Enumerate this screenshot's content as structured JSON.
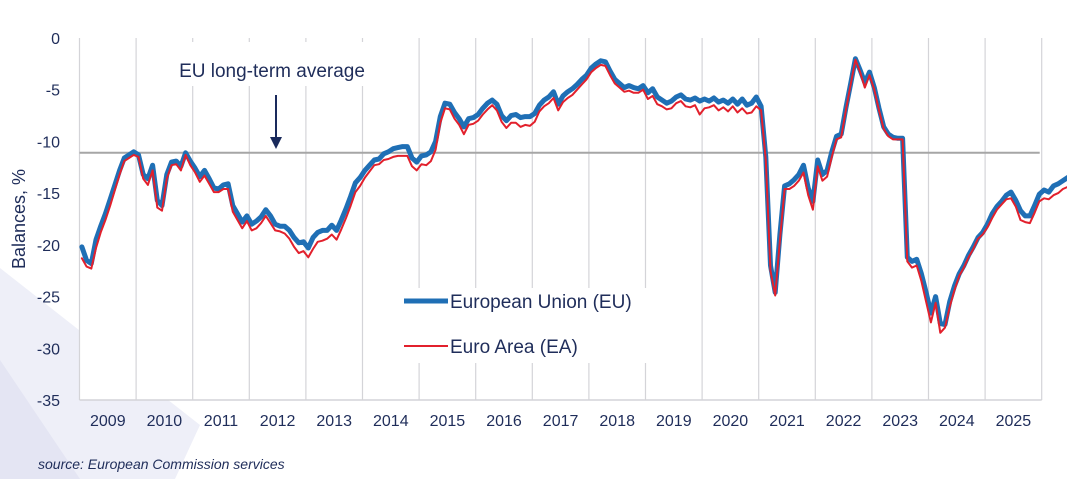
{
  "chart_data": {
    "type": "line",
    "title": "",
    "xlabel": "",
    "ylabel": "Balances, %",
    "ylim": [
      -35,
      0
    ],
    "yticks": [
      0,
      -5,
      -10,
      -15,
      -20,
      -25,
      -30,
      -35
    ],
    "ytick_labels": [
      "0",
      "-5",
      "-10",
      "-15",
      "-20",
      "-25",
      "-30",
      "-35"
    ],
    "x_categories": [
      "2009",
      "2010",
      "2011",
      "2012",
      "2013",
      "2014",
      "2015",
      "2016",
      "2017",
      "2018",
      "2019",
      "2020",
      "2021",
      "2022",
      "2023",
      "2024",
      "2025"
    ],
    "x_start": "2009-01",
    "frequency": "monthly",
    "grid": "vertical year separators",
    "legend_placement": "lower-center",
    "reference_line": {
      "label": "EU long-term average",
      "value": -11.1
    },
    "annotation": {
      "text": "EU long-term average",
      "arrow_points_to": "EU long-term average line"
    },
    "series": [
      {
        "name": "European Union (EU)",
        "color": "#1f6fb5",
        "values": [
          -20.2,
          -21.5,
          -21.8,
          -19.5,
          -18.2,
          -17.0,
          -15.6,
          -14.2,
          -12.8,
          -11.6,
          -11.3,
          -11.0,
          -11.3,
          -13.2,
          -13.6,
          -12.3,
          -15.7,
          -16.2,
          -13.2,
          -12.0,
          -11.9,
          -12.4,
          -11.1,
          -11.9,
          -12.6,
          -13.4,
          -12.8,
          -13.6,
          -14.5,
          -14.6,
          -14.2,
          -14.1,
          -16.2,
          -17.0,
          -17.8,
          -17.2,
          -18.0,
          -17.7,
          -17.3,
          -16.6,
          -17.2,
          -18.0,
          -18.2,
          -18.2,
          -18.6,
          -19.3,
          -19.8,
          -19.7,
          -20.3,
          -19.3,
          -18.8,
          -18.6,
          -18.6,
          -18.1,
          -18.6,
          -17.6,
          -16.5,
          -15.3,
          -14.0,
          -13.5,
          -12.8,
          -12.3,
          -11.8,
          -11.7,
          -11.2,
          -11.0,
          -10.7,
          -10.6,
          -10.5,
          -10.5,
          -11.6,
          -12.0,
          -11.4,
          -11.3,
          -11.0,
          -10.0,
          -7.6,
          -6.3,
          -6.4,
          -7.2,
          -7.8,
          -8.6,
          -7.8,
          -7.7,
          -7.4,
          -6.8,
          -6.3,
          -6.0,
          -6.4,
          -7.5,
          -8.0,
          -7.5,
          -7.4,
          -7.7,
          -7.6,
          -7.6,
          -7.3,
          -6.5,
          -6.0,
          -5.7,
          -5.2,
          -6.4,
          -5.6,
          -5.2,
          -4.9,
          -4.5,
          -4.0,
          -3.6,
          -2.9,
          -2.5,
          -2.2,
          -2.3,
          -3.2,
          -4.0,
          -4.4,
          -4.8,
          -4.6,
          -4.8,
          -4.9,
          -4.6,
          -5.3,
          -4.9,
          -5.7,
          -6.0,
          -6.3,
          -6.1,
          -5.7,
          -5.5,
          -5.9,
          -6.0,
          -5.8,
          -6.1,
          -5.9,
          -6.1,
          -5.8,
          -6.2,
          -6.0,
          -6.3,
          -5.9,
          -6.4,
          -5.9,
          -6.5,
          -6.3,
          -5.7,
          -6.6,
          -11.5,
          -22.0,
          -24.6,
          -19.0,
          -14.3,
          -14.1,
          -13.7,
          -13.2,
          -12.3,
          -14.5,
          -15.8,
          -11.8,
          -13.2,
          -12.8,
          -11.0,
          -9.5,
          -9.3,
          -6.7,
          -4.4,
          -2.0,
          -3.1,
          -4.3,
          -3.3,
          -4.8,
          -6.8,
          -8.6,
          -9.3,
          -9.6,
          -9.7,
          -9.7,
          -21.2,
          -21.6,
          -21.4,
          -22.8,
          -24.6,
          -26.6,
          -25.0,
          -27.6,
          -27.7,
          -25.5,
          -24.0,
          -22.8,
          -22.0,
          -21.0,
          -20.2,
          -19.3,
          -18.8,
          -18.0,
          -17.0,
          -16.3,
          -15.8,
          -15.2,
          -14.9,
          -15.7,
          -16.7,
          -17.2,
          -17.2,
          -16.2,
          -15.1,
          -14.7,
          -14.9,
          -14.3,
          -14.1,
          -13.8,
          -13.5,
          -13.2,
          -13.2,
          -12.8,
          -12.7,
          -12.2,
          -12.0,
          -11.6,
          -11.6,
          -11.2,
          -11.0,
          -11.8,
          -12.4,
          -13.0,
          -13.1,
          -13.2,
          -13.0,
          -13.4,
          -14.8,
          -14.6,
          -14.5,
          -14.7,
          -14.5,
          -14.6,
          -14.2,
          -14.5,
          -14.0,
          -13.6,
          -13.6
        ]
      },
      {
        "name": "Euro Area (EA)",
        "color": "#e2202c",
        "values": [
          -21.3,
          -22.1,
          -22.3,
          -20.3,
          -18.8,
          -17.6,
          -16.2,
          -14.7,
          -13.2,
          -11.9,
          -11.6,
          -11.3,
          -11.5,
          -13.6,
          -14.2,
          -12.8,
          -16.4,
          -16.7,
          -13.6,
          -12.3,
          -12.2,
          -12.8,
          -11.3,
          -12.3,
          -13.0,
          -13.9,
          -13.3,
          -14.1,
          -14.9,
          -14.9,
          -14.6,
          -14.6,
          -16.8,
          -17.6,
          -18.4,
          -17.7,
          -18.6,
          -18.4,
          -17.9,
          -17.2,
          -17.9,
          -18.6,
          -18.7,
          -18.9,
          -19.4,
          -20.2,
          -20.8,
          -20.6,
          -21.2,
          -20.4,
          -19.7,
          -19.6,
          -19.4,
          -19.0,
          -19.5,
          -18.5,
          -17.4,
          -16.2,
          -14.9,
          -14.3,
          -13.5,
          -12.9,
          -12.3,
          -12.2,
          -11.8,
          -11.7,
          -11.5,
          -11.4,
          -11.4,
          -11.4,
          -12.4,
          -12.8,
          -12.2,
          -12.3,
          -11.9,
          -10.8,
          -8.2,
          -6.8,
          -6.9,
          -7.8,
          -8.4,
          -9.3,
          -8.4,
          -8.3,
          -8.0,
          -7.4,
          -6.9,
          -6.5,
          -7.0,
          -8.1,
          -8.7,
          -8.2,
          -8.2,
          -8.6,
          -8.4,
          -8.5,
          -8.1,
          -7.1,
          -6.6,
          -6.3,
          -5.8,
          -7.0,
          -6.2,
          -5.8,
          -5.5,
          -5.0,
          -4.5,
          -4.0,
          -3.3,
          -2.9,
          -2.6,
          -2.7,
          -3.6,
          -4.4,
          -4.8,
          -5.2,
          -5.1,
          -5.3,
          -5.3,
          -5.0,
          -5.9,
          -5.6,
          -6.4,
          -6.6,
          -6.9,
          -6.8,
          -6.3,
          -6.1,
          -6.6,
          -6.7,
          -6.5,
          -7.4,
          -6.8,
          -6.7,
          -6.5,
          -7.0,
          -6.7,
          -7.1,
          -6.6,
          -7.2,
          -6.8,
          -7.3,
          -7.2,
          -6.6,
          -7.0,
          -11.8,
          -22.5,
          -24.9,
          -19.6,
          -14.6,
          -14.6,
          -14.3,
          -13.8,
          -13.0,
          -15.2,
          -16.6,
          -12.4,
          -13.8,
          -13.4,
          -11.5,
          -9.8,
          -9.6,
          -6.9,
          -4.5,
          -2.1,
          -3.3,
          -4.8,
          -3.6,
          -5.0,
          -7.0,
          -8.8,
          -9.5,
          -9.8,
          -9.8,
          -9.8,
          -21.6,
          -22.2,
          -22.0,
          -23.5,
          -25.5,
          -27.5,
          -25.6,
          -28.5,
          -28.0,
          -26.0,
          -24.4,
          -23.0,
          -22.2,
          -21.2,
          -20.4,
          -19.4,
          -19.0,
          -18.3,
          -17.4,
          -16.6,
          -16.1,
          -15.6,
          -15.5,
          -16.3,
          -17.6,
          -17.8,
          -17.9,
          -16.9,
          -15.8,
          -15.5,
          -15.6,
          -15.2,
          -15.0,
          -14.6,
          -14.4,
          -14.0,
          -14.0,
          -13.6,
          -13.5,
          -13.0,
          -13.2,
          -12.7,
          -12.8,
          -12.4,
          -12.4,
          -13.2,
          -13.7,
          -14.2,
          -14.2,
          -14.1,
          -14.1,
          -14.6,
          -16.3,
          -15.6,
          -15.5,
          -15.6,
          -15.3,
          -15.6,
          -15.0,
          -15.3,
          -14.7,
          -14.4,
          -14.4
        ]
      }
    ]
  },
  "footer": {
    "source": "source: European Commission services"
  }
}
